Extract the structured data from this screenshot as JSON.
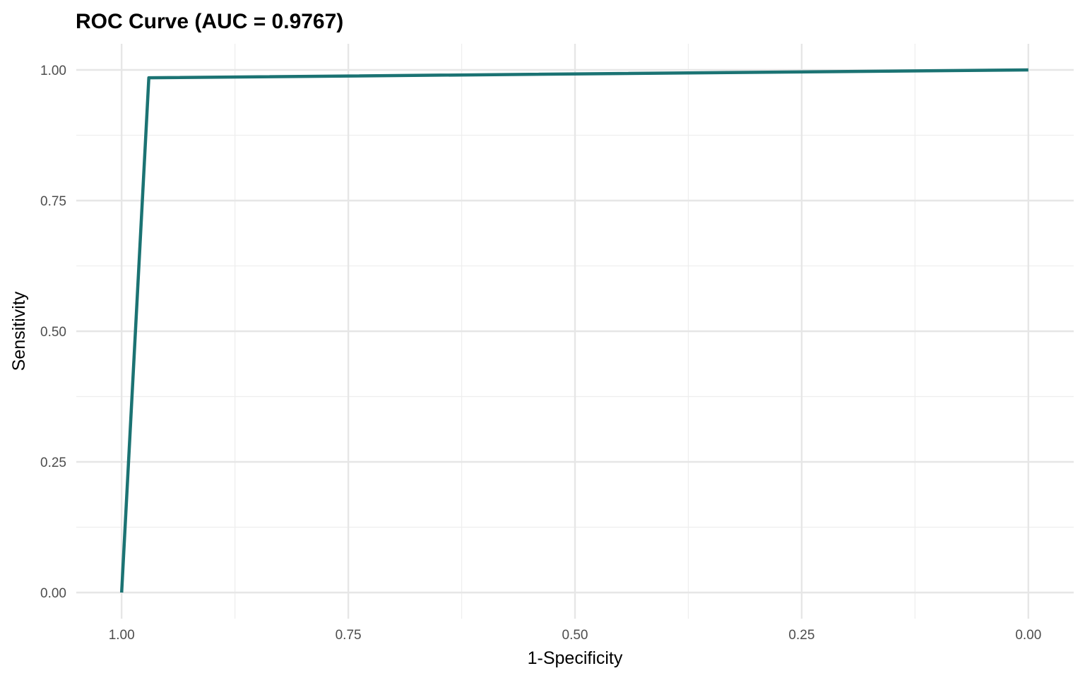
{
  "chart_data": {
    "type": "line",
    "title": "ROC Curve (AUC = 0.9767)",
    "xlabel": "1-Specificity",
    "ylabel": "Sensitivity",
    "x_reversed": true,
    "xlim": [
      1.05,
      -0.05
    ],
    "ylim": [
      -0.05,
      1.05
    ],
    "x_ticks": [
      1.0,
      0.75,
      0.5,
      0.25,
      0.0
    ],
    "x_tick_labels": [
      "1.00",
      "0.75",
      "0.50",
      "0.25",
      "0.00"
    ],
    "x_minor_ticks": [
      0.875,
      0.625,
      0.375,
      0.125
    ],
    "y_ticks": [
      0.0,
      0.25,
      0.5,
      0.75,
      1.0
    ],
    "y_tick_labels": [
      "0.00",
      "0.25",
      "0.50",
      "0.75",
      "1.00"
    ],
    "y_minor_ticks": [
      0.125,
      0.375,
      0.625,
      0.875
    ],
    "grid": true,
    "legend": "none",
    "line_color": "#1b7373",
    "series": [
      {
        "x": [
          1.0,
          0.97,
          0.0
        ],
        "y": [
          0.0,
          0.985,
          1.0
        ]
      }
    ]
  }
}
